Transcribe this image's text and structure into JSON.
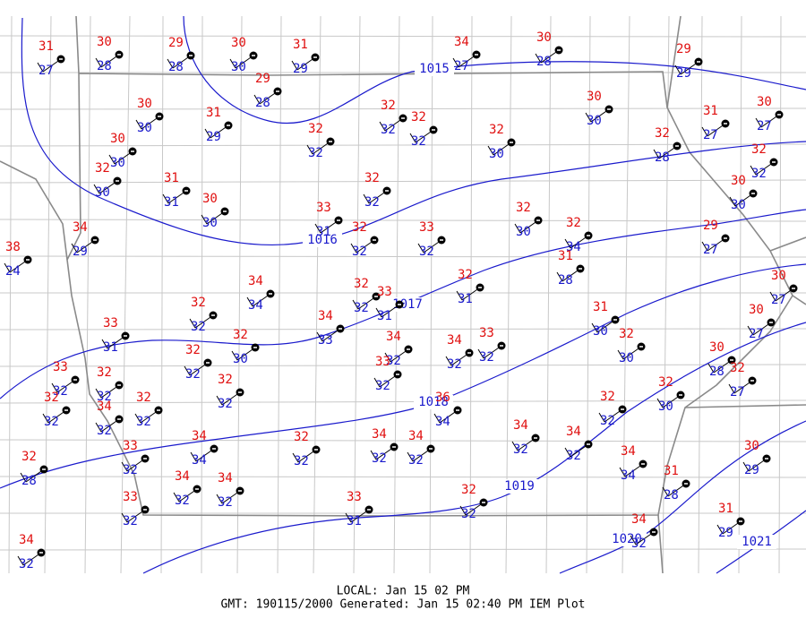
{
  "stations": [
    {
      "temp": 31,
      "dewpoint": 27
    },
    {
      "temp": 30,
      "dewpoint": 28
    },
    {
      "temp": 29,
      "dewpoint": 28
    },
    {
      "temp": 30,
      "dewpoint": 30
    },
    {
      "temp": 31,
      "dewpoint": 29
    },
    {
      "temp": 34,
      "dewpoint": 27
    },
    {
      "temp": 30,
      "dewpoint": 28
    },
    {
      "temp": 29,
      "dewpoint": 29
    },
    {
      "temp": 29,
      "dewpoint": 28
    },
    {
      "temp": 30,
      "dewpoint": 30
    },
    {
      "temp": 31,
      "dewpoint": 29
    },
    {
      "temp": 32,
      "dewpoint": 32
    },
    {
      "temp": 32,
      "dewpoint": 32
    },
    {
      "temp": 32,
      "dewpoint": 32
    },
    {
      "temp": 32,
      "dewpoint": 30
    },
    {
      "temp": 30,
      "dewpoint": 30
    },
    {
      "temp": 31,
      "dewpoint": 27
    },
    {
      "temp": 30,
      "dewpoint": 27
    },
    {
      "temp": 32,
      "dewpoint": 28
    },
    {
      "temp": 32,
      "dewpoint": 32
    },
    {
      "temp": 30,
      "dewpoint": 30
    },
    {
      "temp": 32,
      "dewpoint": 30
    },
    {
      "temp": 31,
      "dewpoint": 31
    },
    {
      "temp": 30,
      "dewpoint": 30
    },
    {
      "temp": 32,
      "dewpoint": 32
    },
    {
      "temp": 33,
      "dewpoint": 31
    },
    {
      "temp": 32,
      "dewpoint": 32
    },
    {
      "temp": 33,
      "dewpoint": 32
    },
    {
      "temp": 32,
      "dewpoint": 30
    },
    {
      "temp": 32,
      "dewpoint": 34
    },
    {
      "temp": 30,
      "dewpoint": 30
    },
    {
      "temp": 29,
      "dewpoint": 27
    },
    {
      "temp": 34,
      "dewpoint": 29
    },
    {
      "temp": 38,
      "dewpoint": 24
    },
    {
      "temp": 31,
      "dewpoint": 28
    },
    {
      "temp": 32,
      "dewpoint": 31
    },
    {
      "temp": 32,
      "dewpoint": 32
    },
    {
      "temp": 34,
      "dewpoint": 34
    },
    {
      "temp": 32,
      "dewpoint": 32
    },
    {
      "temp": 33,
      "dewpoint": 31
    },
    {
      "temp": 34,
      "dewpoint": 33
    },
    {
      "temp": 31,
      "dewpoint": 30
    },
    {
      "temp": 30,
      "dewpoint": 27
    },
    {
      "temp": 30,
      "dewpoint": 27
    },
    {
      "temp": 33,
      "dewpoint": 31
    },
    {
      "temp": 32,
      "dewpoint": 30
    },
    {
      "temp": 32,
      "dewpoint": 32
    },
    {
      "temp": 34,
      "dewpoint": 32
    },
    {
      "temp": 34,
      "dewpoint": 32
    },
    {
      "temp": 33,
      "dewpoint": 32
    },
    {
      "temp": 32,
      "dewpoint": 30
    },
    {
      "temp": 30,
      "dewpoint": 28
    },
    {
      "temp": 32,
      "dewpoint": 27
    },
    {
      "temp": 33,
      "dewpoint": 32
    },
    {
      "temp": 33,
      "dewpoint": 32
    },
    {
      "temp": 32,
      "dewpoint": 32
    },
    {
      "temp": 32,
      "dewpoint": 32
    },
    {
      "temp": 32,
      "dewpoint": 32
    },
    {
      "temp": 34,
      "dewpoint": 32
    },
    {
      "temp": 32,
      "dewpoint": 32
    },
    {
      "temp": 32,
      "dewpoint": 30
    },
    {
      "temp": 36,
      "dewpoint": 34
    },
    {
      "temp": 32,
      "dewpoint": 32
    },
    {
      "temp": 34,
      "dewpoint": 32
    },
    {
      "temp": 34,
      "dewpoint": 32
    },
    {
      "temp": 34,
      "dewpoint": 32
    },
    {
      "temp": 34,
      "dewpoint": 32
    },
    {
      "temp": 32,
      "dewpoint": 32
    },
    {
      "temp": 34,
      "dewpoint": 34
    },
    {
      "temp": 33,
      "dewpoint": 32
    },
    {
      "temp": 34,
      "dewpoint": 34
    },
    {
      "temp": 30,
      "dewpoint": 29
    },
    {
      "temp": 32,
      "dewpoint": 28
    },
    {
      "temp": 31,
      "dewpoint": 28
    },
    {
      "temp": 34,
      "dewpoint": 32
    },
    {
      "temp": 34,
      "dewpoint": 32
    },
    {
      "temp": 32,
      "dewpoint": 32
    },
    {
      "temp": 33,
      "dewpoint": 32
    },
    {
      "temp": 33,
      "dewpoint": 31
    },
    {
      "temp": 31,
      "dewpoint": 29
    },
    {
      "temp": 34,
      "dewpoint": 32
    },
    {
      "temp": 34,
      "dewpoint": 32
    }
  ],
  "isobars": [
    1015,
    1016,
    1017,
    1018,
    1019,
    1020,
    1021
  ],
  "footer": {
    "local": "LOCAL: Jan 15 02 PM",
    "gmt": "GMT: 190115/2000 Generated: Jan 15 02:40 PM IEM Plot"
  }
}
